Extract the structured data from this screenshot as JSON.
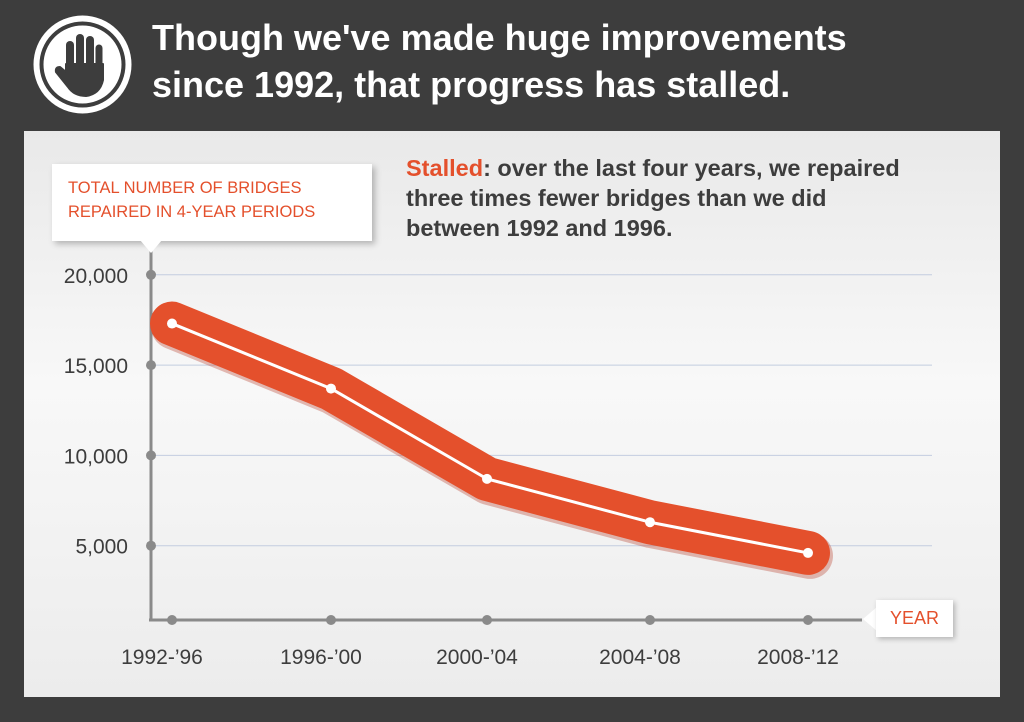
{
  "header": {
    "icon": "raised-hand-icon",
    "headline_line1": "Though we've made huge improvements",
    "headline_line2": "since 1992, that progress has stalled."
  },
  "colors": {
    "background": "#3d3d3d",
    "accent": "#e4502c",
    "panel": "#efefef",
    "text": "#3d3d3d"
  },
  "chart_data": {
    "type": "line",
    "ylabel_line1": "TOTAL NUMBER OF BRIDGES",
    "ylabel_line2": "REPAIRED IN 4-YEAR PERIODS",
    "xlabel": "YEAR",
    "categories": [
      "1992-’96",
      "1996-’00",
      "2000-’04",
      "2004-’08",
      "2008-’12"
    ],
    "values": [
      17300,
      13700,
      8700,
      6300,
      4600
    ],
    "ylim": [
      0,
      20000
    ],
    "yticks": [
      20000,
      15000,
      10000,
      5000
    ],
    "ytick_labels": [
      "20,000",
      "15,000",
      "10,000",
      "5,000"
    ],
    "grid": true,
    "annotation": {
      "highlight": "Stalled",
      "line1_rest": ": over the last four years, we repaired",
      "line2": "three times fewer bridges than we did",
      "line3": "between 1992 and 1996."
    }
  }
}
